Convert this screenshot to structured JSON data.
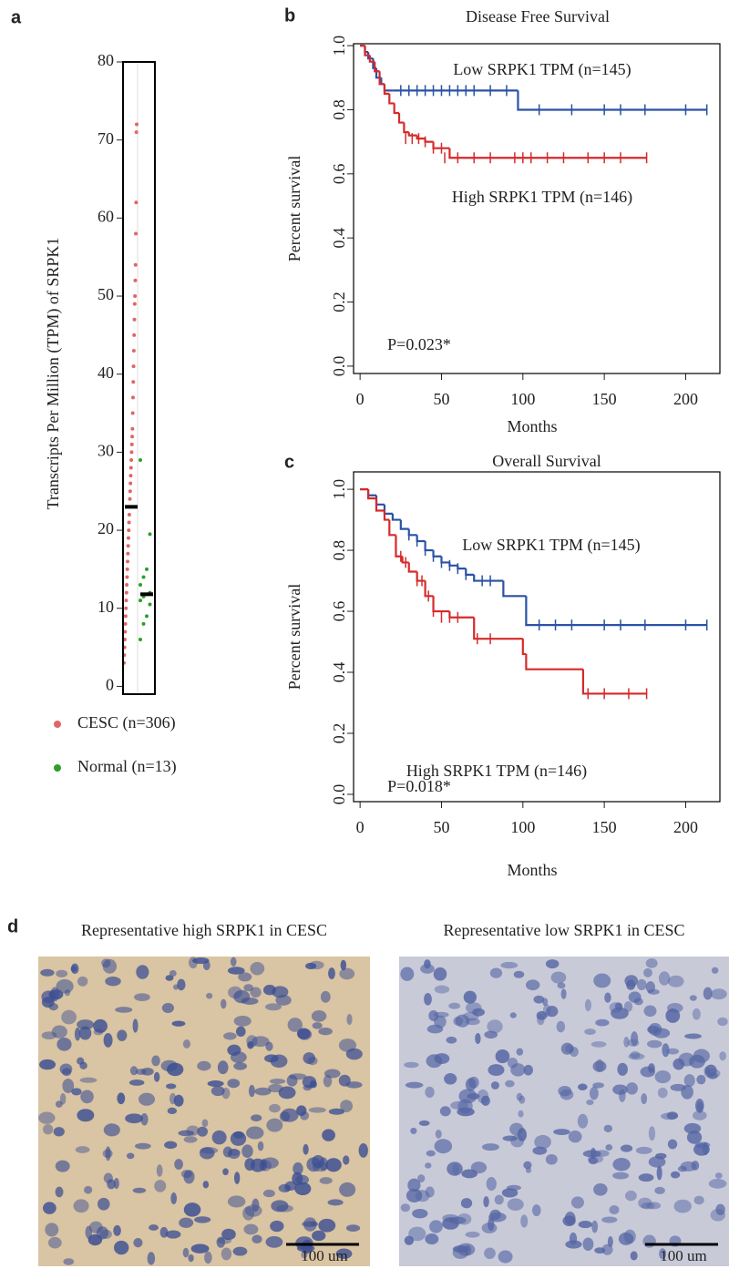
{
  "chart_data": [
    {
      "type": "strip",
      "panel": "a",
      "ylabel": "Transcripts Per Million (TPM) of SRPK1",
      "ylim": [
        -1,
        80
      ],
      "yticks": [
        0,
        10,
        20,
        30,
        40,
        50,
        60,
        70,
        80
      ],
      "series": [
        {
          "name": "CESC (n=306)",
          "color": "#e06666",
          "median": 23,
          "values": [
            3,
            4,
            5,
            6,
            7,
            8,
            9,
            10,
            11,
            12,
            13,
            14,
            15,
            16,
            17,
            18,
            19,
            20,
            21,
            22,
            23,
            24,
            25,
            26,
            27,
            28,
            29,
            30,
            31,
            32,
            33,
            35,
            37,
            39,
            41,
            43,
            45,
            47,
            49,
            50,
            52,
            54,
            58,
            62,
            71,
            72
          ]
        },
        {
          "name": "Normal (n=13)",
          "color": "#2ca02c",
          "median": 11.8,
          "values": [
            6,
            8,
            9,
            10.5,
            11,
            11.5,
            11.8,
            12,
            13,
            14,
            15,
            19.5,
            29
          ]
        }
      ]
    },
    {
      "type": "survival",
      "panel": "b",
      "title": "Disease Free Survival",
      "xlabel": "Months",
      "ylabel": "Percent survival",
      "xlim": [
        -4,
        221
      ],
      "ylim": [
        -0.023,
        1.006
      ],
      "xticks": [
        0,
        50,
        100,
        150,
        200
      ],
      "yticks": [
        {
          "value": 0,
          "label": "0.0"
        },
        0.2,
        0.4,
        0.6,
        0.8,
        {
          "value": 1,
          "label": "1.0"
        }
      ],
      "annotation": "P=0.023*",
      "series": [
        {
          "name": "Low SRPK1 TPM (n=145)",
          "color": "#2a52a5",
          "x": [
            0,
            3,
            5,
            8,
            10,
            13,
            15,
            20,
            97,
            213
          ],
          "values": [
            1,
            0.98,
            0.96,
            0.93,
            0.9,
            0.88,
            0.86,
            0.86,
            0.8,
            0.8
          ],
          "censor_x": [
            25,
            30,
            35,
            40,
            45,
            50,
            55,
            60,
            65,
            70,
            80,
            90,
            110,
            130,
            150,
            160,
            175,
            200,
            213
          ],
          "censor_y": [
            0.86,
            0.86,
            0.86,
            0.86,
            0.86,
            0.86,
            0.86,
            0.86,
            0.86,
            0.86,
            0.86,
            0.86,
            0.8,
            0.8,
            0.8,
            0.8,
            0.8,
            0.8,
            0.8
          ]
        },
        {
          "name": "High SRPK1 TPM (n=146)",
          "color": "#d62a2a",
          "x": [
            0,
            3,
            6,
            9,
            12,
            15,
            18,
            21,
            24,
            27,
            30,
            35,
            40,
            45,
            55,
            176
          ],
          "values": [
            1,
            0.97,
            0.95,
            0.92,
            0.88,
            0.85,
            0.82,
            0.79,
            0.76,
            0.73,
            0.72,
            0.71,
            0.7,
            0.68,
            0.65,
            0.65
          ],
          "censor_x": [
            28,
            32,
            36,
            40,
            45,
            50,
            52,
            60,
            70,
            80,
            95,
            100,
            105,
            115,
            125,
            140,
            150,
            160,
            176
          ],
          "censor_y": [
            0.71,
            0.71,
            0.71,
            0.7,
            0.68,
            0.68,
            0.65,
            0.65,
            0.65,
            0.65,
            0.65,
            0.65,
            0.65,
            0.65,
            0.65,
            0.65,
            0.65,
            0.65,
            0.65
          ]
        }
      ]
    },
    {
      "type": "survival",
      "panel": "c",
      "title": "Overall Survival",
      "xlabel": "Months",
      "ylabel": "Percent survival",
      "xlim": [
        -4,
        221
      ],
      "ylim": [
        -0.024,
        1.057
      ],
      "xticks": [
        0,
        50,
        100,
        150,
        200
      ],
      "yticks": [
        {
          "value": 0,
          "label": "0.0"
        },
        0.2,
        0.4,
        0.6,
        0.8,
        {
          "value": 1,
          "label": "1.0"
        }
      ],
      "annotation": "P=0.018*",
      "series": [
        {
          "name": "Low SRPK1 TPM (n=145)",
          "color": "#2a52a5",
          "x": [
            0,
            5,
            10,
            15,
            20,
            25,
            30,
            35,
            40,
            45,
            50,
            55,
            60,
            65,
            70,
            85,
            88,
            102,
            213
          ],
          "values": [
            1,
            0.98,
            0.95,
            0.92,
            0.9,
            0.87,
            0.85,
            0.83,
            0.8,
            0.78,
            0.76,
            0.75,
            0.74,
            0.72,
            0.7,
            0.7,
            0.65,
            0.555,
            0.555
          ],
          "censor_x": [
            30,
            35,
            40,
            45,
            50,
            55,
            60,
            65,
            75,
            80,
            110,
            120,
            130,
            150,
            160,
            175,
            200,
            213
          ],
          "censor_y": [
            0.85,
            0.83,
            0.8,
            0.78,
            0.76,
            0.75,
            0.74,
            0.72,
            0.7,
            0.7,
            0.555,
            0.555,
            0.555,
            0.555,
            0.555,
            0.555,
            0.555,
            0.555
          ]
        },
        {
          "name": "High SRPK1 TPM (n=146)",
          "color": "#d62a2a",
          "x": [
            0,
            5,
            10,
            15,
            18,
            22,
            26,
            30,
            35,
            40,
            45,
            55,
            60,
            70,
            80,
            100,
            102,
            137,
            176
          ],
          "values": [
            1,
            0.97,
            0.93,
            0.9,
            0.85,
            0.78,
            0.76,
            0.73,
            0.7,
            0.65,
            0.6,
            0.58,
            0.58,
            0.51,
            0.51,
            0.46,
            0.41,
            0.33,
            0.33
          ],
          "censor_x": [
            25,
            28,
            35,
            38,
            42,
            45,
            50,
            55,
            60,
            72,
            80,
            140,
            150,
            165,
            176
          ],
          "censor_y": [
            0.78,
            0.76,
            0.7,
            0.7,
            0.65,
            0.6,
            0.58,
            0.58,
            0.58,
            0.51,
            0.51,
            0.33,
            0.33,
            0.33,
            0.33
          ]
        }
      ]
    }
  ],
  "figure_d": {
    "panel": "d",
    "images": [
      {
        "title": "Representative high SRPK1 in CESC",
        "scale_bar": "100 um"
      },
      {
        "title": "Representative low SRPK1 in CESC",
        "scale_bar": "100 um"
      }
    ]
  }
}
